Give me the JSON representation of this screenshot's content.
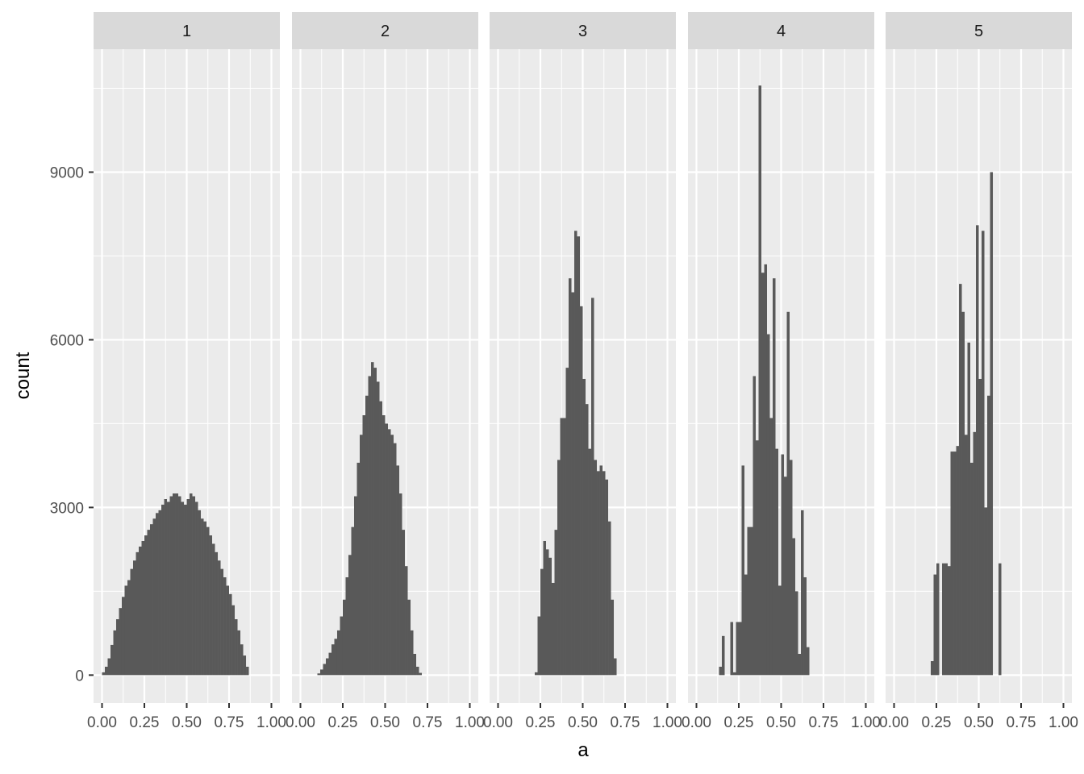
{
  "chart_data": {
    "type": "bar",
    "subtype": "faceted-histogram",
    "xlabel": "a",
    "ylabel": "count",
    "xlim": [
      -0.05,
      1.05
    ],
    "ylim": [
      -500,
      11200
    ],
    "x_ticks": [
      0.0,
      0.25,
      0.5,
      0.75,
      1.0
    ],
    "x_tick_labels": [
      "0.00",
      "0.25",
      "0.50",
      "0.75",
      "1.00"
    ],
    "y_ticks": [
      0,
      3000,
      6000,
      9000
    ],
    "y_tick_labels": [
      "0",
      "3000",
      "6000",
      "9000"
    ],
    "grid": true,
    "legend": "none",
    "colors": {
      "bar": "#595959",
      "panel": "#ebebeb",
      "strip": "#d9d9d9",
      "grid": "#ffffff"
    },
    "bin_width": 0.01667,
    "facets": [
      {
        "label": "1",
        "bins_start": 0.0083,
        "values": [
          50,
          150,
          300,
          540,
          800,
          1000,
          1200,
          1400,
          1600,
          1700,
          1900,
          2050,
          2200,
          2300,
          2400,
          2500,
          2600,
          2700,
          2800,
          2900,
          2950,
          3050,
          3150,
          3100,
          3200,
          3250,
          3250,
          3200,
          3100,
          3050,
          3150,
          3250,
          3200,
          3100,
          2950,
          2800,
          2750,
          2650,
          2500,
          2350,
          2200,
          2050,
          1900,
          1750,
          1600,
          1450,
          1250,
          1000,
          800,
          550,
          350,
          150
        ]
      },
      {
        "label": "2",
        "bins_start": 0.1083,
        "values": [
          30,
          100,
          200,
          300,
          400,
          550,
          650,
          800,
          1050,
          1350,
          1750,
          2150,
          2650,
          3200,
          3800,
          4300,
          4650,
          5000,
          5350,
          5600,
          5500,
          5250,
          4900,
          4650,
          4500,
          4400,
          4300,
          4150,
          3750,
          3250,
          2600,
          1950,
          1350,
          800,
          380,
          150,
          40
        ]
      },
      {
        "label": "3",
        "bins_start": 0.225,
        "values": [
          50,
          1050,
          1900,
          2400,
          2250,
          2100,
          1650,
          2600,
          3850,
          4600,
          4600,
          5500,
          7100,
          6850,
          7950,
          7850,
          6600,
          5300,
          4850,
          4050,
          6750,
          3850,
          3650,
          3750,
          3650,
          3500,
          2750,
          1350,
          300,
          0,
          0,
          0,
          0,
          0,
          0
        ]
      },
      {
        "label": "4",
        "bins_start": 0.1416,
        "values": [
          150,
          700,
          0,
          0,
          950,
          50,
          950,
          950,
          3750,
          1800,
          2650,
          2650,
          5350,
          4200,
          10550,
          7200,
          7350,
          6100,
          4600,
          7100,
          4050,
          1600,
          3950,
          3550,
          6500,
          3850,
          2450,
          1500,
          380,
          2950,
          1750,
          500
        ]
      },
      {
        "label": "5",
        "bins_start": 0.225,
        "values": [
          250,
          1800,
          2000,
          0,
          2000,
          2000,
          1950,
          4000,
          4000,
          4100,
          7000,
          6500,
          4300,
          5950,
          3800,
          4350,
          8050,
          5300,
          7950,
          3000,
          5000,
          9000,
          0,
          0,
          2000
        ]
      }
    ]
  }
}
